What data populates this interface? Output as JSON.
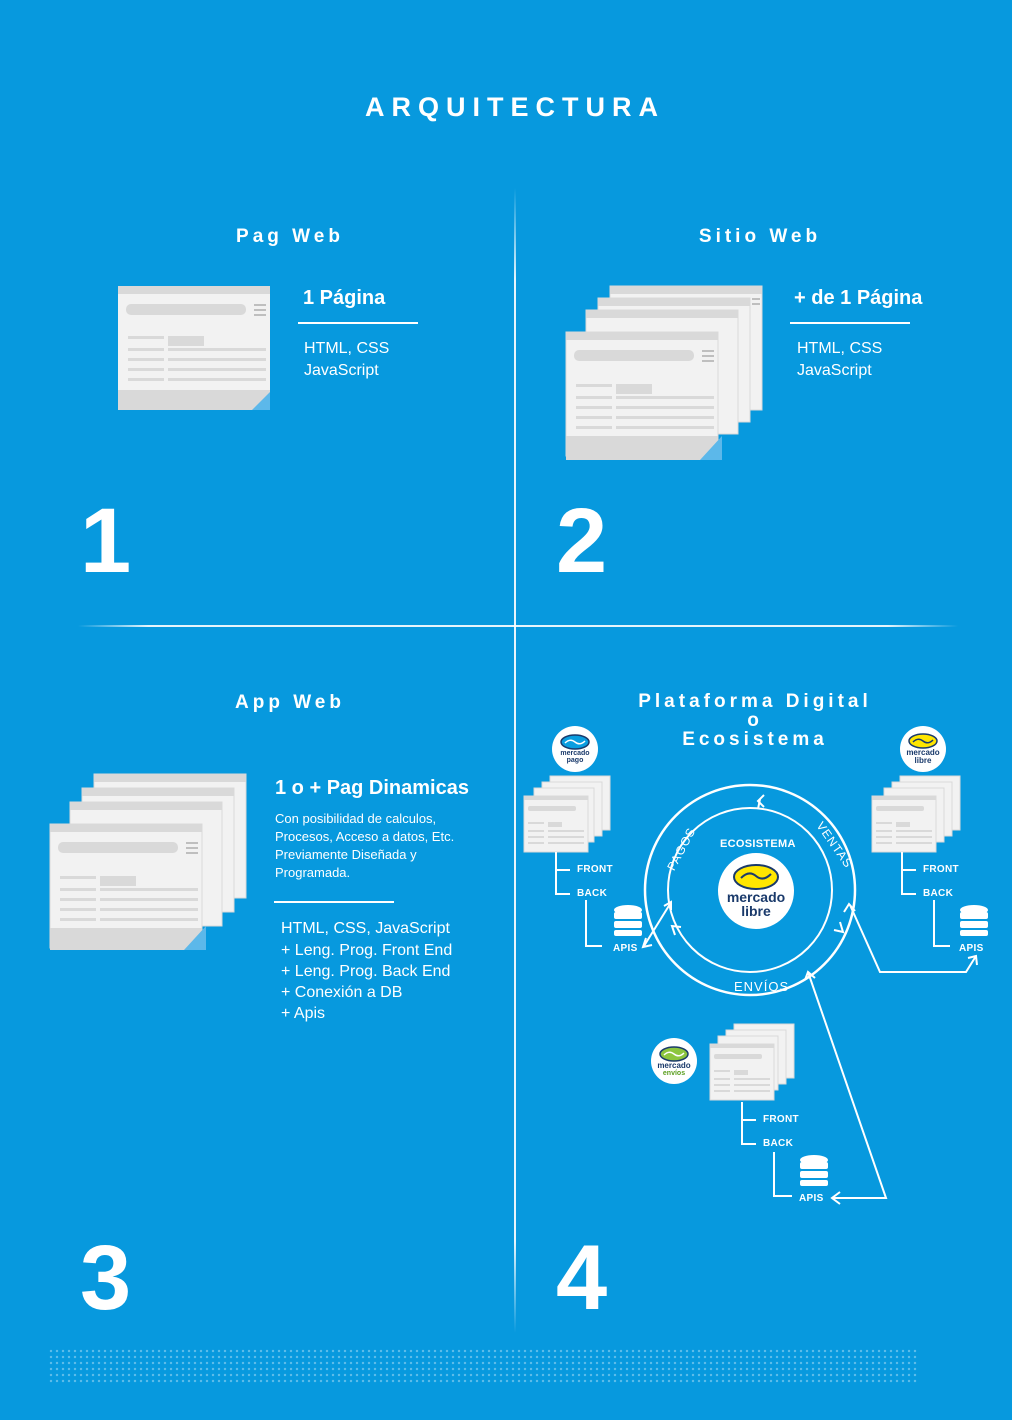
{
  "title": "ARQUITECTURA",
  "q1": {
    "heading": "Pag Web",
    "subtitle": "1 Página",
    "lines": [
      "HTML, CSS",
      "JavaScript"
    ],
    "number": "1"
  },
  "q2": {
    "heading": "Sitio Web",
    "subtitle": "+ de 1 Página",
    "lines": [
      "HTML, CSS",
      "JavaScript"
    ],
    "number": "2"
  },
  "q3": {
    "heading": "App Web",
    "subtitle": "1 o + Pag Dinamicas",
    "description": [
      "Con posibilidad de calculos,",
      "Procesos, Acceso a datos, Etc.",
      "Previamente Diseñada y",
      "Programada."
    ],
    "lines": [
      "HTML, CSS, JavaScript",
      "+ Leng. Prog. Front End",
      "+ Leng. Prog. Back End",
      "+ Conexión a DB",
      "+ Apis"
    ],
    "number": "3"
  },
  "q4": {
    "heading": [
      "Plataforma Digital",
      "o",
      "Ecosistema"
    ],
    "number": "4",
    "ring_labels": {
      "center": "ECOSISTEMA",
      "left": "PAGOS",
      "right": "VENTAS",
      "bottom": "ENVÍOS"
    },
    "tags": {
      "front": "FRONT",
      "back": "BACK",
      "apis": "APIS"
    },
    "logos": {
      "center": [
        "mercado",
        "libre"
      ],
      "pago": [
        "mercado",
        "pago"
      ],
      "libre": [
        "mercado",
        "libre"
      ],
      "envios": [
        "mercado",
        "envíos"
      ]
    }
  },
  "colors": {
    "background": "#0799de",
    "page": "#f2f2f2",
    "page_shadow": "#d9d9d9",
    "page_fold": "#5cb8ea",
    "logo_yellow": "#ffe600",
    "logo_navy": "#1a3a6b"
  }
}
